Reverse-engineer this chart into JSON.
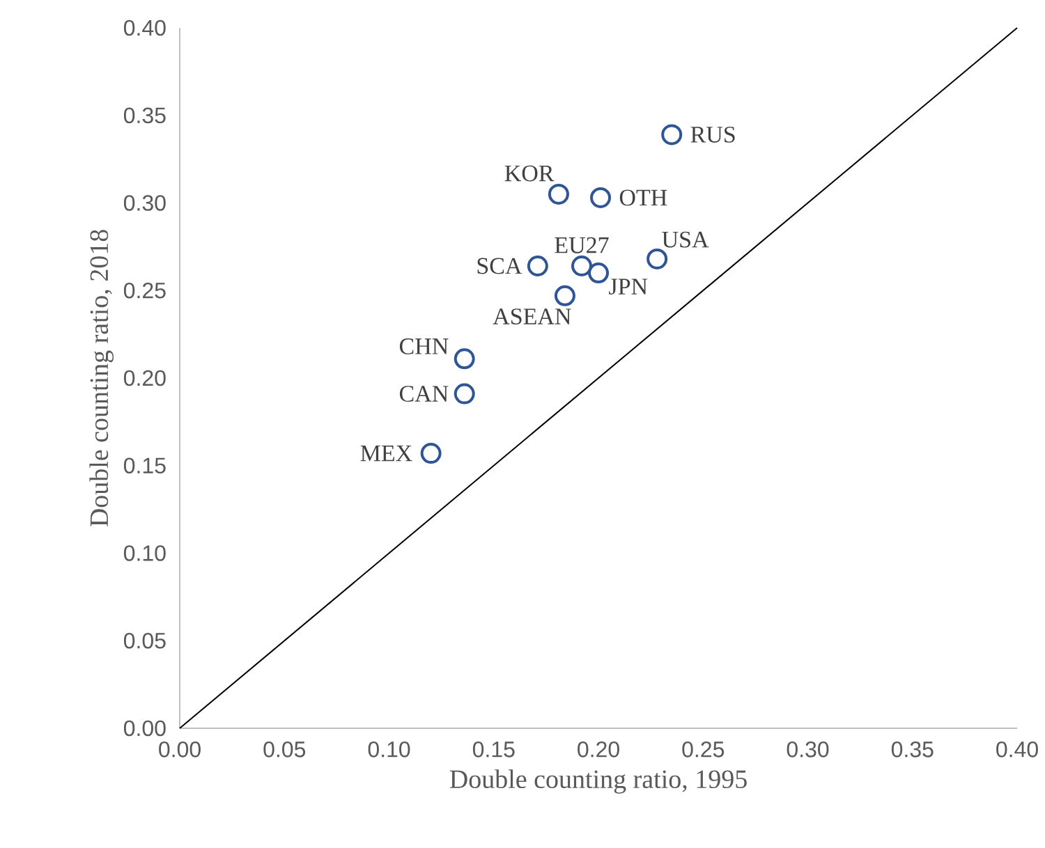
{
  "chart_data": {
    "type": "scatter",
    "xlabel": "Double counting ratio, 1995",
    "ylabel": "Double counting ratio, 2018",
    "xlim": [
      0,
      0.4
    ],
    "ylim": [
      0,
      0.4
    ],
    "xticks": [
      {
        "value": 0,
        "label": "0.00"
      },
      {
        "value": 0.05,
        "label": "0.05"
      },
      {
        "value": 0.1,
        "label": "0.10"
      },
      {
        "value": 0.15,
        "label": "0.15"
      },
      {
        "value": 0.2,
        "label": "0.20"
      },
      {
        "value": 0.25,
        "label": "0.25"
      },
      {
        "value": 0.3,
        "label": "0.30"
      },
      {
        "value": 0.35,
        "label": "0.35"
      },
      {
        "value": 0.4,
        "label": "0.40"
      }
    ],
    "yticks": [
      {
        "value": 0,
        "label": "0.00"
      },
      {
        "value": 0.05,
        "label": "0.05"
      },
      {
        "value": 0.1,
        "label": "0.10"
      },
      {
        "value": 0.15,
        "label": "0.15"
      },
      {
        "value": 0.2,
        "label": "0.20"
      },
      {
        "value": 0.25,
        "label": "0.25"
      },
      {
        "value": 0.3,
        "label": "0.30"
      },
      {
        "value": 0.35,
        "label": "0.35"
      },
      {
        "value": 0.4,
        "label": "0.40"
      }
    ],
    "marker": "circle",
    "series": [
      {
        "type": "line",
        "marker": "none",
        "color": "#000000",
        "x": [
          0,
          0.4
        ],
        "values": [
          0,
          0.4
        ]
      },
      {
        "name": "RUS",
        "color": "#2f5597",
        "x": [
          0.235
        ],
        "values": [
          0.339
        ]
      },
      {
        "name": "KOR",
        "color": "#2f5597",
        "x": [
          0.181
        ],
        "values": [
          0.305
        ]
      },
      {
        "name": "OTH",
        "color": "#2f5597",
        "x": [
          0.201
        ],
        "values": [
          0.303
        ]
      },
      {
        "name": "USA",
        "color": "#2f5597",
        "x": [
          0.228
        ],
        "values": [
          0.268
        ]
      },
      {
        "name": "EU27",
        "color": "#2f5597",
        "x": [
          0.192
        ],
        "values": [
          0.264
        ]
      },
      {
        "name": "SCA",
        "color": "#2f5597",
        "x": [
          0.171
        ],
        "values": [
          0.264
        ]
      },
      {
        "name": "JPN",
        "color": "#2f5597",
        "x": [
          0.2
        ],
        "values": [
          0.26
        ]
      },
      {
        "name": "ASEAN",
        "color": "#2f5597",
        "x": [
          0.184
        ],
        "values": [
          0.247
        ]
      },
      {
        "name": "CHN",
        "color": "#2f5597",
        "x": [
          0.136
        ],
        "values": [
          0.211
        ]
      },
      {
        "name": "CAN",
        "color": "#2f5597",
        "x": [
          0.136
        ],
        "values": [
          0.191
        ]
      },
      {
        "name": "MEX",
        "color": "#2f5597",
        "x": [
          0.12
        ],
        "values": [
          0.157
        ]
      }
    ]
  }
}
